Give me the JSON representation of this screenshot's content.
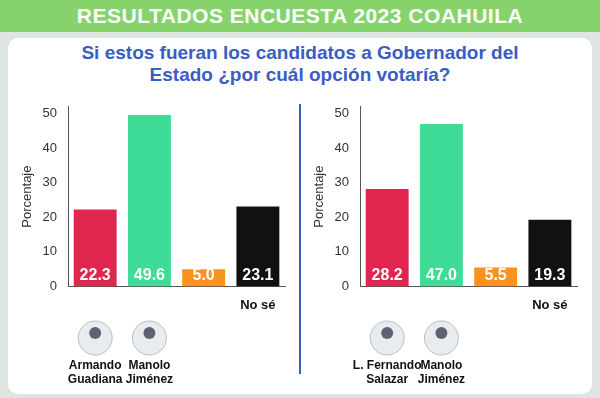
{
  "header": {
    "title": "RESULTADOS ENCUESTA 2023 COAHUILA",
    "subtitle": "Si estos fueran los candidatos a Gobernador del Estado ¿por cuál opción votaría?"
  },
  "chart_data": [
    {
      "type": "bar",
      "y_label": "Porcentaje",
      "categories": [
        null,
        null,
        null,
        "No sé"
      ],
      "values": [
        22.3,
        49.6,
        5.0,
        23.1
      ],
      "value_labels": [
        "22.3",
        "49.6",
        "5.0",
        "23.1"
      ],
      "colors": [
        "#e0264f",
        "#3fdc98",
        "#f7931e",
        "#111111"
      ],
      "ylim": [
        0,
        52
      ],
      "yticks": [
        0,
        10,
        20,
        30,
        40,
        50
      ],
      "grid": false,
      "data_labels": true,
      "annotations": [
        "Armando Guadiana",
        "Manolo Jiménez"
      ]
    },
    {
      "type": "bar",
      "y_label": "Porcentaje",
      "categories": [
        null,
        null,
        null,
        "No sé"
      ],
      "values": [
        28.2,
        47.0,
        5.5,
        19.3
      ],
      "value_labels": [
        "28.2",
        "47.0",
        "5.5",
        "19.3"
      ],
      "colors": [
        "#e0264f",
        "#3fdc98",
        "#f7931e",
        "#111111"
      ],
      "ylim": [
        0,
        52
      ],
      "yticks": [
        0,
        10,
        20,
        30,
        40,
        50
      ],
      "grid": false,
      "data_labels": true,
      "annotations": [
        "L. Fernando Salazar",
        "Manolo Jiménez"
      ]
    }
  ]
}
